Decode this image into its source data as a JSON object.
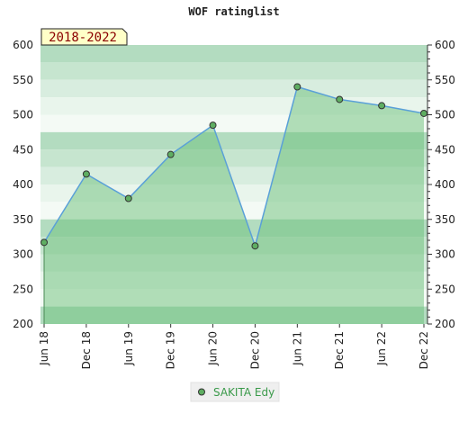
{
  "chart_data": {
    "type": "area",
    "title": "WOF ratinglist",
    "badge": "2018-2022",
    "categories": [
      "Jun 18",
      "Dec 18",
      "Jun 19",
      "Dec 19",
      "Jun 20",
      "Dec 20",
      "Jun 21",
      "Dec 21",
      "Jun 22",
      "Dec 22"
    ],
    "series": [
      {
        "name": "SAKITA Edy",
        "values": [
          317,
          415,
          380,
          443,
          485,
          312,
          540,
          522,
          513,
          502
        ]
      }
    ],
    "ylim": [
      200,
      600
    ],
    "yticks": [
      200,
      250,
      300,
      350,
      400,
      450,
      500,
      550,
      600
    ],
    "xlabel": "",
    "ylabel": "",
    "legend_position": "bottom-center",
    "colors": {
      "line": "#5aa0d8",
      "fill": "#6cc07a",
      "marker": "#5fae62",
      "band_dark": "#b3dcc0",
      "band_light": "#e6f3ea"
    }
  }
}
